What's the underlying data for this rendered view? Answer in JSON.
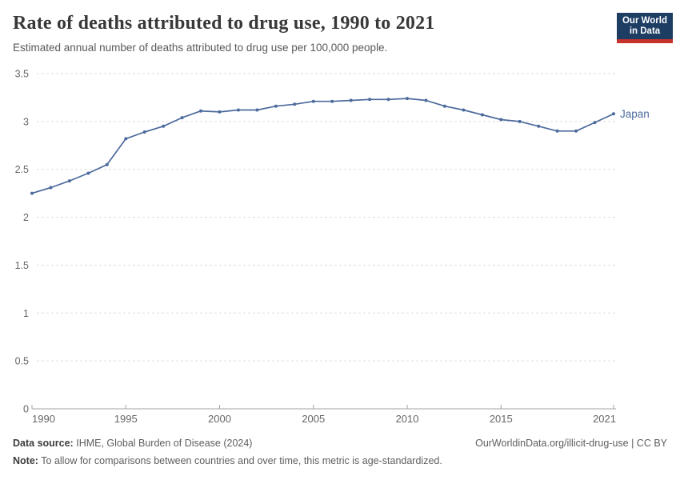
{
  "header": {
    "title": "Rate of deaths attributed to drug use, 1990 to 2021",
    "subtitle": "Estimated annual number of deaths attributed to drug use per 100,000 people."
  },
  "logo": {
    "line1": "Our World",
    "line2": "in Data",
    "bg_color": "#1d3d63",
    "underline_color": "#c7322c",
    "text_color": "#ffffff"
  },
  "chart_data": {
    "type": "line",
    "title": "Rate of deaths attributed to drug use, 1990 to 2021",
    "xlabel": "",
    "ylabel": "",
    "x": [
      1990,
      1991,
      1992,
      1993,
      1994,
      1995,
      1996,
      1997,
      1998,
      1999,
      2000,
      2001,
      2002,
      2003,
      2004,
      2005,
      2006,
      2007,
      2008,
      2009,
      2010,
      2011,
      2012,
      2013,
      2014,
      2015,
      2016,
      2017,
      2018,
      2019,
      2020,
      2021
    ],
    "series": [
      {
        "name": "Japan",
        "color": "#4c6a9c",
        "values": [
          2.25,
          2.31,
          2.38,
          2.46,
          2.55,
          2.82,
          2.89,
          2.95,
          3.04,
          3.11,
          3.1,
          3.12,
          3.12,
          3.16,
          3.18,
          3.21,
          3.21,
          3.22,
          3.23,
          3.23,
          3.24,
          3.22,
          3.16,
          3.12,
          3.07,
          3.02,
          3.0,
          2.95,
          2.9,
          2.9,
          2.99,
          3.08
        ]
      }
    ],
    "ylim": [
      0,
      3.5
    ],
    "yticks": [
      0,
      0.5,
      1,
      1.5,
      2,
      2.5,
      3,
      3.5
    ],
    "ytick_labels": [
      "0",
      "0.5",
      "1",
      "1.5",
      "2",
      "2.5",
      "3",
      "3.5"
    ],
    "xticks": [
      1990,
      1995,
      2000,
      2005,
      2010,
      2015,
      2021
    ],
    "grid": true,
    "legend": "end-of-line-label",
    "colors": {
      "grid": "#dedede",
      "axis": "#a3a3a3",
      "tick_text": "#666666"
    }
  },
  "footer": {
    "source_label": "Data source:",
    "source_text": "IHME, Global Burden of Disease (2024)",
    "link_text": "OurWorldinData.org/illicit-drug-use | CC BY",
    "note_label": "Note:",
    "note_text": "To allow for comparisons between countries and over time, this metric is age-standardized."
  }
}
